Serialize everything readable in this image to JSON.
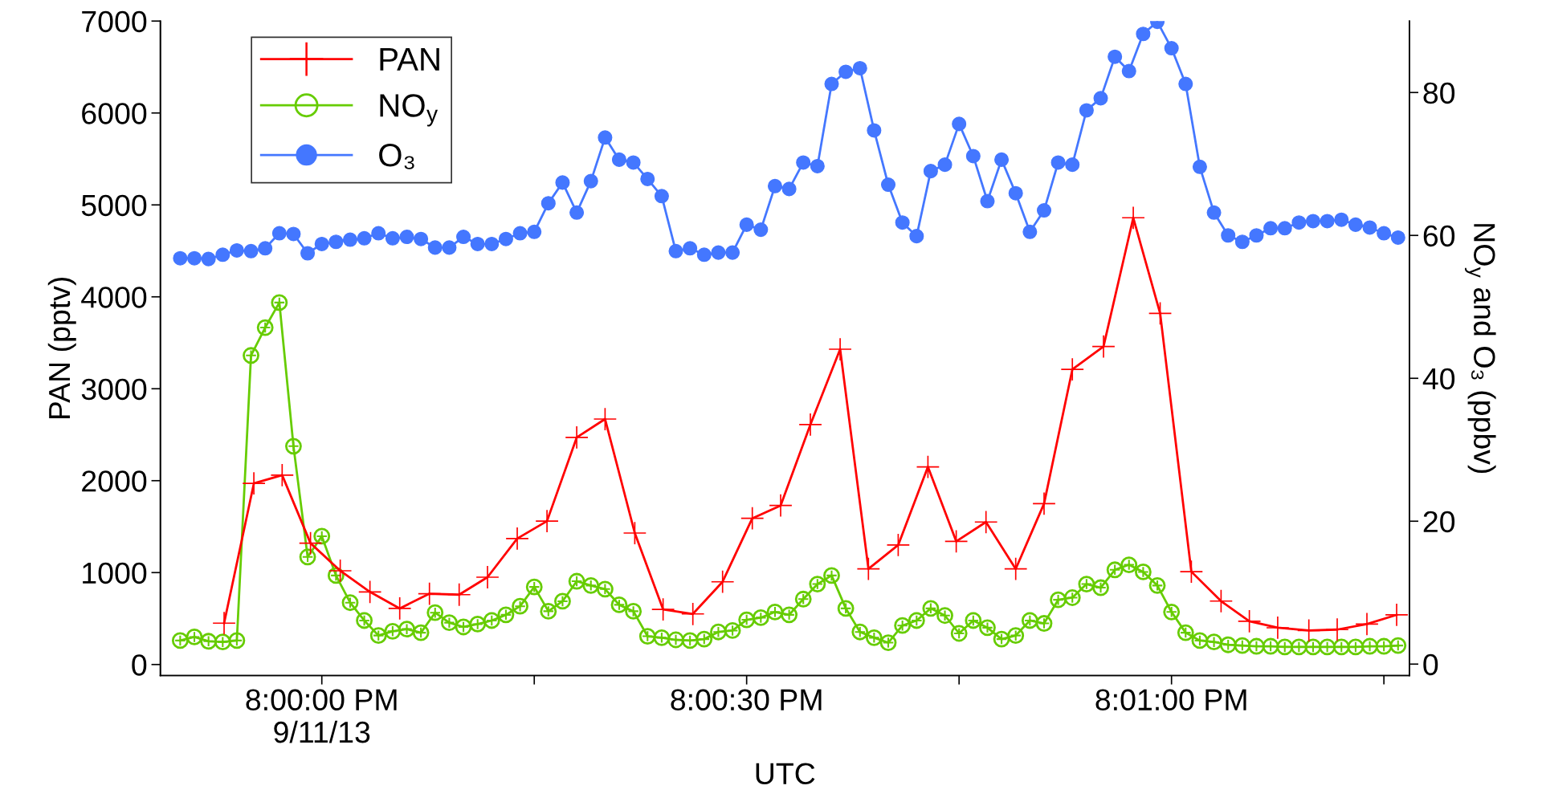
{
  "chart_data": {
    "type": "line",
    "xlabel": "UTC",
    "ylabel": "PAN (pptv)",
    "y2label": "NO$_{y}$ and O₃ (ppbv)",
    "xlim": [
      19.996833,
      20.021333
    ],
    "xticks": [
      {
        "value": 20,
        "label": "8:00:00 PM\n9/11/13"
      },
      {
        "value": 20.004167,
        "label": null
      },
      {
        "value": 20.008333,
        "label": "8:00:30 PM"
      },
      {
        "value": 20.0125,
        "label": null
      },
      {
        "value": 20.016667,
        "label": "8:01:00 PM"
      },
      {
        "value": 20.020833,
        "label": null
      }
    ],
    "ylim": [
      -120,
      7000
    ],
    "yticks": [
      0,
      1000,
      2000,
      3000,
      4000,
      5000,
      6000,
      7000
    ],
    "y2lim": [
      -1.6,
      90
    ],
    "y2ticks": [
      0,
      20,
      40,
      60,
      80
    ],
    "grid": false,
    "legend": "top left",
    "line_style": "solid",
    "x": [
      19.997222,
      19.9975,
      19.997778,
      19.998056,
      19.998333,
      19.998611,
      19.998889,
      19.999167,
      19.999444,
      19.999722,
      20,
      20.000278,
      20.000556,
      20.000833,
      20.001111,
      20.001389,
      20.001667,
      20.001944,
      20.002222,
      20.0025,
      20.002778,
      20.003056,
      20.003333,
      20.003611,
      20.003889,
      20.004167,
      20.004444,
      20.004722,
      20.005,
      20.005278,
      20.005556,
      20.005833,
      20.006111,
      20.006389,
      20.006667,
      20.006944,
      20.007222,
      20.0075,
      20.007778,
      20.008056,
      20.008333,
      20.008611,
      20.008889,
      20.009167,
      20.009444,
      20.009722,
      20.01,
      20.010278,
      20.010556,
      20.010833,
      20.011111,
      20.011389,
      20.011667,
      20.011944,
      20.012222,
      20.0125,
      20.012778,
      20.013056,
      20.013333,
      20.013611,
      20.013889,
      20.014167,
      20.014444,
      20.014722,
      20.015,
      20.015278,
      20.015556,
      20.015833,
      20.016111,
      20.016389,
      20.016667,
      20.016944,
      20.017222,
      20.0175,
      20.017778,
      20.018056,
      20.018333,
      20.018611,
      20.018889,
      20.019167,
      20.019444,
      20.019722,
      20.02,
      20.020278,
      20.020556,
      20.020833,
      20.021111
    ],
    "series": [
      {
        "name": "PAN",
        "color": "#ff0000",
        "marker": "cross",
        "x": [
          19.998083,
          19.998667,
          19.999222,
          19.999778,
          20.000361,
          20.000944,
          20.001528,
          20.002111,
          20.002694,
          20.00325,
          20.003833,
          20.004417,
          20.005,
          20.005556,
          20.006139,
          20.006694,
          20.007278,
          20.007861,
          20.008444,
          20.009,
          20.009583,
          20.010167,
          20.010722,
          20.011306,
          20.011889,
          20.012444,
          20.013028,
          20.013611,
          20.014167,
          20.014722,
          20.015333,
          20.015917,
          20.016444,
          20.017056,
          20.017639,
          20.018194,
          20.01875,
          20.019361,
          20.019917,
          20.0205,
          20.021083
        ],
        "values": [
          450,
          1970,
          2060,
          1320,
          1020,
          790,
          610,
          770,
          760,
          950,
          1370,
          1560,
          2470,
          2670,
          1430,
          600,
          550,
          900,
          1590,
          1730,
          2610,
          3430,
          1040,
          1300,
          2150,
          1340,
          1550,
          1040,
          1750,
          3210,
          3460,
          4860,
          3820,
          1010,
          690,
          470,
          400,
          370,
          380,
          440,
          540
        ]
      },
      {
        "name": "NO$_{y}$",
        "color": "#66cc00",
        "marker": "circle_cross",
        "axis": "y2",
        "values": [
          3.3,
          3.8,
          3.2,
          3.1,
          3.3,
          43.2,
          47.1,
          50.6,
          30.5,
          15.0,
          17.9,
          12.4,
          8.6,
          6.1,
          4.0,
          4.6,
          4.9,
          4.4,
          7.2,
          5.8,
          5.2,
          5.6,
          6.1,
          6.9,
          8.1,
          10.8,
          7.4,
          8.8,
          11.6,
          11.0,
          10.5,
          8.3,
          7.4,
          3.9,
          3.7,
          3.4,
          3.3,
          3.5,
          4.5,
          4.7,
          6.2,
          6.5,
          7.3,
          6.9,
          9.1,
          11.2,
          12.4,
          7.8,
          4.5,
          3.7,
          3.0,
          5.4,
          6.1,
          7.8,
          6.8,
          4.3,
          6.1,
          5.1,
          3.5,
          4.0,
          6.1,
          5.7,
          9.0,
          9.3,
          11.2,
          10.7,
          13.2,
          13.9,
          12.9,
          11.0,
          7.3,
          4.4,
          3.3,
          3.1,
          2.7,
          2.6,
          2.5,
          2.5,
          2.4,
          2.4,
          2.4,
          2.4,
          2.4,
          2.4,
          2.5,
          2.5,
          2.6
        ]
      },
      {
        "name": "O₃",
        "color": "#4477ff",
        "marker": "circle",
        "axis": "y2",
        "values": [
          56.8,
          56.8,
          56.7,
          57.3,
          57.9,
          57.8,
          58.2,
          60.3,
          60.2,
          57.5,
          58.8,
          59.1,
          59.4,
          59.6,
          60.3,
          59.6,
          59.8,
          59.5,
          58.3,
          58.3,
          59.8,
          58.8,
          58.8,
          59.5,
          60.3,
          60.5,
          64.5,
          67.4,
          63.2,
          67.6,
          73.7,
          70.6,
          70.2,
          67.9,
          65.5,
          57.8,
          58.2,
          57.3,
          57.6,
          57.6,
          61.5,
          60.8,
          66.9,
          66.5,
          70.2,
          69.7,
          81.2,
          82.9,
          83.4,
          74.7,
          67.1,
          61.8,
          59.9,
          69.0,
          69.9,
          75.6,
          71.1,
          64.8,
          70.6,
          65.9,
          60.5,
          63.5,
          70.2,
          69.9,
          77.5,
          79.2,
          85.0,
          83.0,
          88.2,
          89.9,
          86.2,
          81.2,
          69.6,
          63.2,
          60.0,
          59.1,
          60.0,
          61.0,
          61.0,
          61.8,
          62.0,
          62.0,
          62.2,
          61.5,
          61.1,
          60.3,
          59.7
        ]
      }
    ]
  }
}
